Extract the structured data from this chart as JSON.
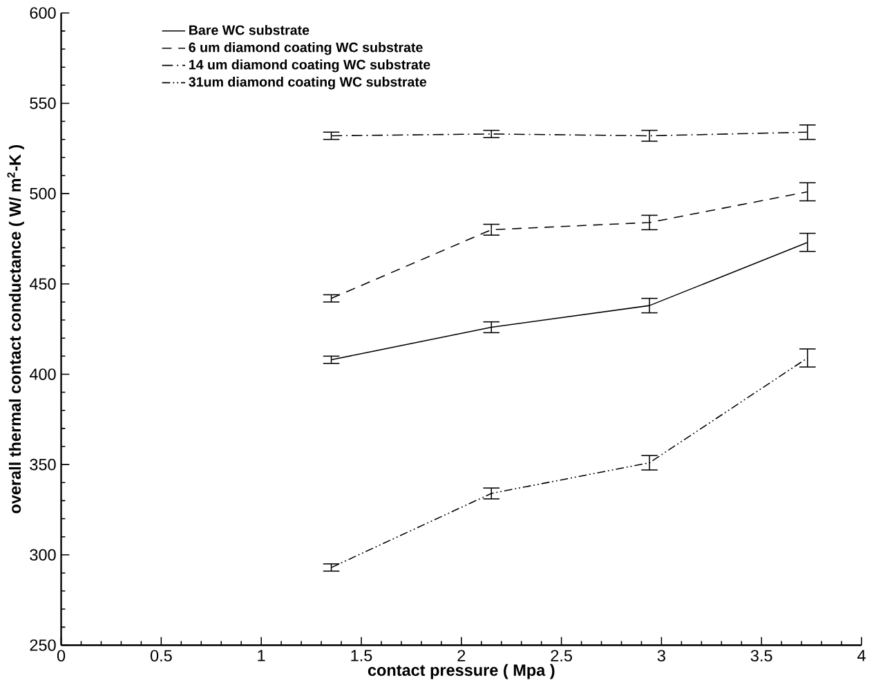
{
  "chart_data": {
    "type": "line",
    "xlabel": "contact pressure ( Mpa )",
    "ylabel": "overall thermal contact conductance ( W/ m$^{2}$-K )",
    "x": [
      1.35,
      2.15,
      2.94,
      3.73
    ],
    "series": [
      {
        "name": "Bare WC substrate",
        "color": "#000000",
        "line_style": "solid",
        "values": [
          408,
          426,
          438,
          473
        ],
        "errors": [
          2,
          3,
          4,
          5
        ]
      },
      {
        "name": "6 um diamond coating WC substrate",
        "color": "#000000",
        "line_style": "dashed",
        "values": [
          442,
          480,
          484,
          501
        ],
        "errors": [
          2,
          3,
          4,
          5
        ]
      },
      {
        "name": "14 um diamond coating  WC substrate",
        "color": "#000000",
        "line_style": "dashdot",
        "values": [
          532,
          533,
          532,
          534
        ],
        "errors": [
          2,
          2,
          3,
          4
        ]
      },
      {
        "name": "31um diamond coating WC substrate",
        "color": "#000000",
        "line_style": "dashdotdot",
        "values": [
          293,
          334,
          351,
          409
        ],
        "errors": [
          2,
          3,
          4,
          5
        ]
      }
    ],
    "xlim": [
      0,
      4
    ],
    "ylim": [
      250,
      600
    ],
    "xticks": [
      0,
      0.5,
      1,
      1.5,
      2,
      2.5,
      3,
      3.5,
      4
    ],
    "yticks": [
      250,
      300,
      350,
      400,
      450,
      500,
      550,
      600
    ],
    "grid": false,
    "legend": "top",
    "marker": "none"
  }
}
